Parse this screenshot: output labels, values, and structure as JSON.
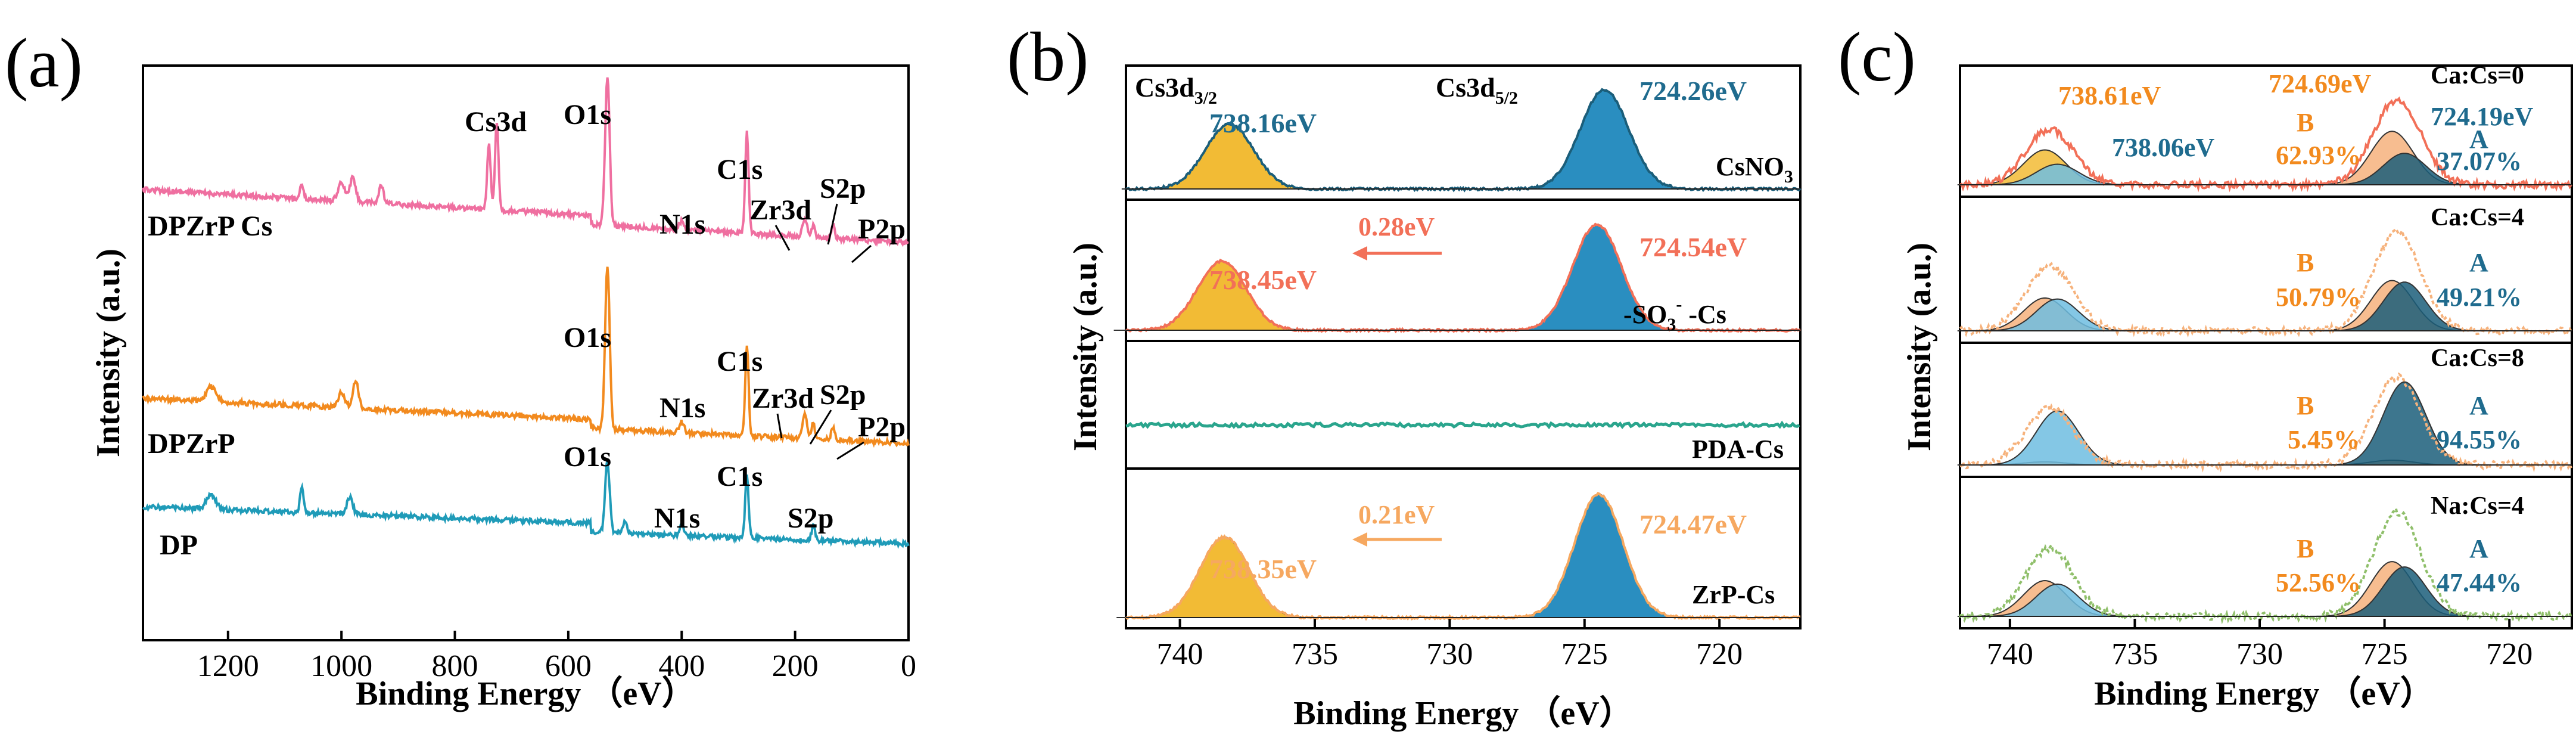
{
  "colors": {
    "pink": "#ef6fa0",
    "orange": "#f28a1e",
    "teal": "#1f9bb8",
    "green": "#2aa58d",
    "coral": "#f27058",
    "lightorange": "#f6a860",
    "gold": "#f2bb35",
    "blue": "#2a8ec0",
    "lightblue": "#6fbde0",
    "peach": "#f6b27c",
    "darkteal": "#1b5e7a",
    "label_orange": "#f28a1e",
    "label_teal": "#1f6b8e"
  },
  "chart_data": [
    {
      "panel": "(a)",
      "type": "line",
      "xlabel": "Binding Energy （eV）",
      "ylabel": "Intensity (a.u.)",
      "xlim": [
        1350,
        0
      ],
      "xticks": [
        1200,
        1000,
        800,
        600,
        400,
        200,
        0
      ],
      "xtick_labels": [
        "1200",
        "1000",
        "800",
        "600",
        "400",
        "200",
        "0"
      ],
      "series": [
        {
          "name": "DPZrP Cs",
          "color": "pink",
          "peaks": [
            {
              "label": "Cs3d",
              "x": 726
            },
            {
              "label": "O1s",
              "x": 531
            },
            {
              "label": "N1s",
              "x": 400
            },
            {
              "label": "C1s",
              "x": 285
            },
            {
              "label": "Zr3d",
              "x": 183
            },
            {
              "label": "S2p",
              "x": 168
            },
            {
              "label": "P2p",
              "x": 133
            }
          ]
        },
        {
          "name": "DPZrP",
          "color": "orange",
          "peaks": [
            {
              "label": "O1s",
              "x": 531
            },
            {
              "label": "N1s",
              "x": 400
            },
            {
              "label": "C1s",
              "x": 285
            },
            {
              "label": "Zr3d",
              "x": 183
            },
            {
              "label": "S2p",
              "x": 168
            },
            {
              "label": "P2p",
              "x": 133
            }
          ]
        },
        {
          "name": "DP",
          "color": "teal",
          "peaks": [
            {
              "label": "O1s",
              "x": 531
            },
            {
              "label": "N1s",
              "x": 400
            },
            {
              "label": "C1s",
              "x": 285
            },
            {
              "label": "S2p",
              "x": 168
            }
          ]
        }
      ]
    },
    {
      "panel": "(b)",
      "type": "line",
      "xlabel": "Binding Energy （eV）",
      "ylabel": "Intensity (a.u.)",
      "xlim": [
        742,
        717
      ],
      "xticks": [
        740,
        735,
        730,
        725,
        720
      ],
      "xtick_labels": [
        "740",
        "735",
        "730",
        "725",
        "720"
      ],
      "rows": [
        {
          "name": "CsNO3",
          "peak1": 738.16,
          "peak2": 724.26,
          "peak1_label": "738.16eV",
          "peak2_label": "724.26eV",
          "cs3d32": "Cs3d",
          "cs3d32_sub": "3/2",
          "cs3d52": "Cs3d",
          "cs3d52_sub": "5/2",
          "sample": "CsNO",
          "sample_sub": "3"
        },
        {
          "name": "-SO3- -Cs",
          "peak1": 738.45,
          "peak2": 724.54,
          "peak1_label": "738.45eV",
          "peak2_label": "724.54eV",
          "shift": "0.28eV",
          "sample_a": "-SO",
          "sample_sub": "3",
          "sample_sup": "-",
          "sample_b": " -Cs"
        },
        {
          "name": "PDA-Cs",
          "sample": "PDA-Cs"
        },
        {
          "name": "ZrP-Cs",
          "peak1": 738.35,
          "peak2": 724.47,
          "peak1_label": "738.35eV",
          "peak2_label": "724.47eV",
          "shift": "0.21eV",
          "sample": "ZrP-Cs"
        }
      ]
    },
    {
      "panel": "(c)",
      "type": "line",
      "xlabel": "Binding Energy （eV）",
      "ylabel": "Intensity (a.u.)",
      "xlim": [
        742,
        717.5
      ],
      "xticks": [
        740,
        735,
        730,
        725,
        720
      ],
      "xtick_labels": [
        "740",
        "735",
        "730",
        "725",
        "720"
      ],
      "rows": [
        {
          "ratio": "Ca:Cs=0",
          "B_label": "B",
          "B_pct": "62.93%",
          "A_label": "A",
          "A_pct": "37.07%",
          "peakB": 724.69,
          "peakA": 724.19,
          "high_B": 738.61,
          "high_A": 738.06,
          "label_B_ev": "724.69eV",
          "label_A_ev": "724.19eV",
          "label_738B": "738.61eV",
          "label_738A": "738.06eV"
        },
        {
          "ratio": "Ca:Cs=4",
          "B_label": "B",
          "B_pct": "50.79%",
          "A_label": "A",
          "A_pct": "49.21%"
        },
        {
          "ratio": "Ca:Cs=8",
          "B_label": "B",
          "B_pct": "5.45%",
          "A_label": "A",
          "A_pct": "94.55%"
        },
        {
          "ratio": "Na:Cs=4",
          "B_label": "B",
          "B_pct": "52.56%",
          "A_label": "A",
          "A_pct": "47.44%"
        }
      ]
    }
  ]
}
